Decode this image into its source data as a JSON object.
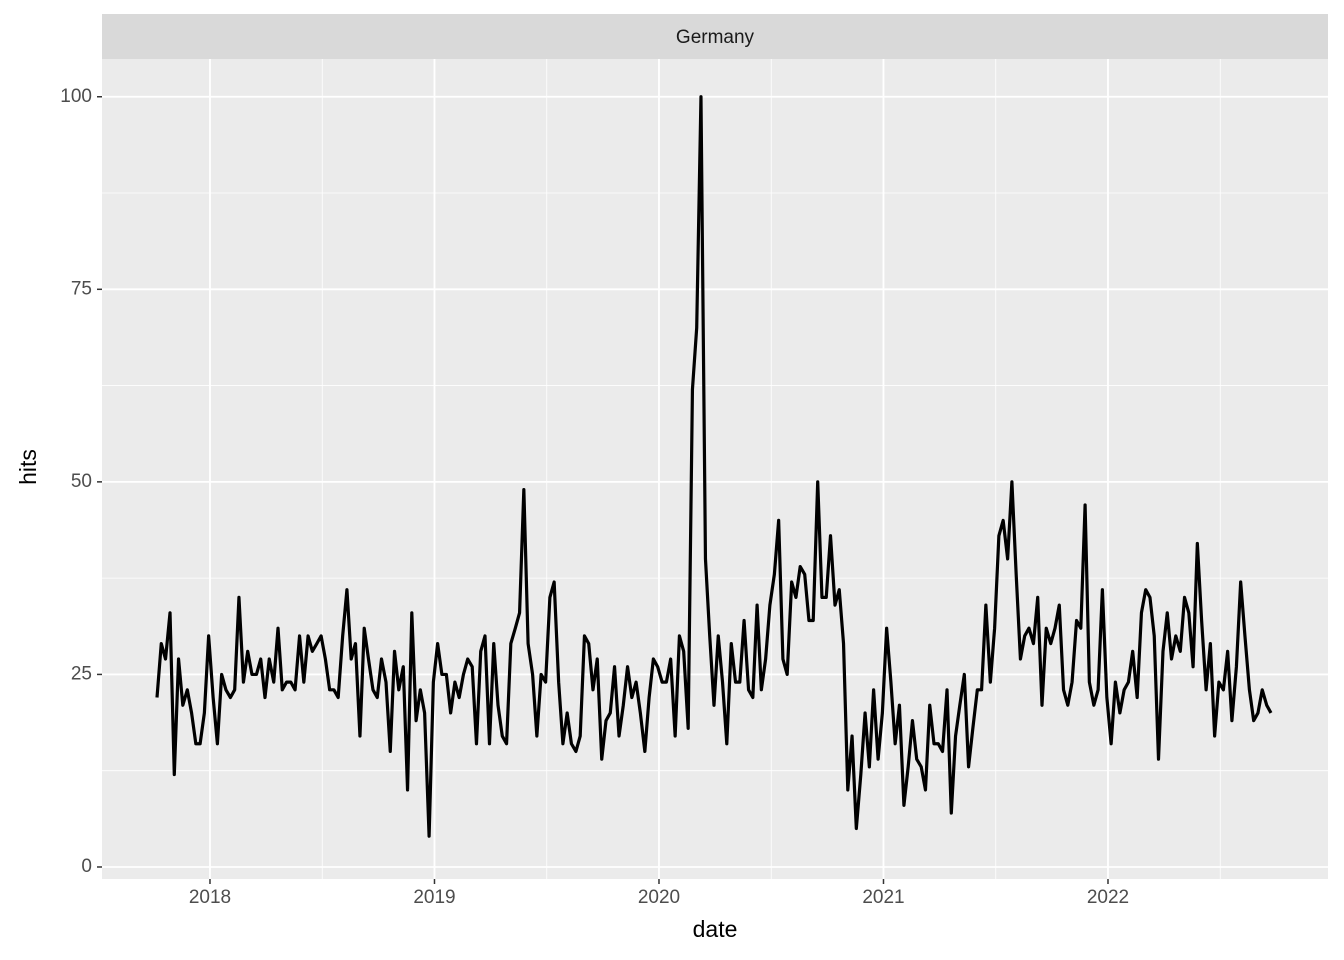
{
  "chart_data": {
    "type": "line",
    "strip_label": "Germany",
    "x_label": "date",
    "y_label": "hits",
    "xlim": [
      2017.519,
      2022.98
    ],
    "ylim": [
      -1.56,
      104.9
    ],
    "xticks": [
      2018,
      2019,
      2020,
      2021,
      2022
    ],
    "yticks": [
      0,
      25,
      50,
      75,
      100
    ],
    "grid": true,
    "minor_grid": true,
    "x": [
      2017.764,
      2017.783,
      2017.802,
      2017.822,
      2017.841,
      2017.86,
      2017.879,
      2017.899,
      2017.918,
      2017.937,
      2017.956,
      2017.975,
      2017.994,
      2018.014,
      2018.033,
      2018.052,
      2018.071,
      2018.091,
      2018.11,
      2018.129,
      2018.149,
      2018.168,
      2018.187,
      2018.207,
      2018.226,
      2018.245,
      2018.264,
      2018.284,
      2018.303,
      2018.322,
      2018.341,
      2018.36,
      2018.379,
      2018.399,
      2018.418,
      2018.437,
      2018.456,
      2018.476,
      2018.495,
      2018.514,
      2018.533,
      2018.552,
      2018.571,
      2018.591,
      2018.61,
      2018.629,
      2018.648,
      2018.668,
      2018.687,
      2018.706,
      2018.726,
      2018.745,
      2018.764,
      2018.784,
      2018.803,
      2018.822,
      2018.841,
      2018.861,
      2018.88,
      2018.899,
      2018.918,
      2018.937,
      2018.956,
      2018.976,
      2018.995,
      2019.014,
      2019.033,
      2019.053,
      2019.072,
      2019.091,
      2019.11,
      2019.129,
      2019.148,
      2019.168,
      2019.187,
      2019.206,
      2019.225,
      2019.245,
      2019.264,
      2019.283,
      2019.302,
      2019.321,
      2019.34,
      2019.36,
      2019.379,
      2019.398,
      2019.417,
      2019.437,
      2019.456,
      2019.475,
      2019.495,
      2019.514,
      2019.533,
      2019.553,
      2019.572,
      2019.591,
      2019.61,
      2019.63,
      2019.649,
      2019.668,
      2019.687,
      2019.706,
      2019.725,
      2019.745,
      2019.764,
      2019.783,
      2019.802,
      2019.822,
      2019.841,
      2019.86,
      2019.879,
      2019.898,
      2019.917,
      2019.937,
      2019.956,
      2019.975,
      2019.994,
      2020.014,
      2020.033,
      2020.052,
      2020.072,
      2020.091,
      2020.11,
      2020.13,
      2020.149,
      2020.168,
      2020.187,
      2020.207,
      2020.226,
      2020.245,
      2020.264,
      2020.283,
      2020.302,
      2020.322,
      2020.341,
      2020.36,
      2020.379,
      2020.399,
      2020.418,
      2020.437,
      2020.456,
      2020.475,
      2020.494,
      2020.514,
      2020.533,
      2020.552,
      2020.571,
      2020.591,
      2020.61,
      2020.629,
      2020.649,
      2020.668,
      2020.687,
      2020.707,
      2020.726,
      2020.745,
      2020.764,
      2020.784,
      2020.803,
      2020.822,
      2020.841,
      2020.86,
      2020.879,
      2020.899,
      2020.918,
      2020.937,
      2020.956,
      2020.976,
      2020.995,
      2021.014,
      2021.033,
      2021.052,
      2021.071,
      2021.091,
      2021.11,
      2021.129,
      2021.148,
      2021.168,
      2021.187,
      2021.206,
      2021.225,
      2021.244,
      2021.263,
      2021.283,
      2021.302,
      2021.321,
      2021.34,
      2021.36,
      2021.379,
      2021.398,
      2021.418,
      2021.437,
      2021.456,
      2021.476,
      2021.495,
      2021.514,
      2021.533,
      2021.553,
      2021.572,
      2021.591,
      2021.61,
      2021.629,
      2021.648,
      2021.668,
      2021.687,
      2021.706,
      2021.725,
      2021.745,
      2021.764,
      2021.783,
      2021.802,
      2021.821,
      2021.84,
      2021.86,
      2021.879,
      2021.898,
      2021.917,
      2021.937,
      2021.956,
      2021.975,
      2021.995,
      2022.014,
      2022.033,
      2022.053,
      2022.072,
      2022.091,
      2022.11,
      2022.13,
      2022.149,
      2022.168,
      2022.187,
      2022.206,
      2022.225,
      2022.245,
      2022.264,
      2022.283,
      2022.302,
      2022.322,
      2022.341,
      2022.36,
      2022.379,
      2022.398,
      2022.417,
      2022.437,
      2022.456,
      2022.475,
      2022.494,
      2022.514,
      2022.533,
      2022.552,
      2022.572,
      2022.591,
      2022.61,
      2022.63,
      2022.649,
      2022.668,
      2022.687,
      2022.707,
      2022.726
    ],
    "series": [
      {
        "color": "#000000",
        "values": [
          22,
          29,
          27,
          33,
          12,
          27,
          21,
          23,
          20,
          16,
          16,
          20,
          30,
          22,
          16,
          25,
          23,
          22,
          23,
          35,
          24,
          28,
          25,
          25,
          27,
          22,
          27,
          24,
          31,
          23,
          24,
          24,
          23,
          30,
          24,
          30,
          28,
          29,
          30,
          27,
          23,
          23,
          22,
          30,
          36,
          27,
          29,
          17,
          31,
          27,
          23,
          22,
          27,
          24,
          15,
          28,
          23,
          26,
          10,
          33,
          19,
          23,
          20,
          4,
          24,
          29,
          25,
          25,
          20,
          24,
          22,
          25,
          27,
          26,
          16,
          28,
          30,
          16,
          29,
          21,
          17,
          16,
          29,
          31,
          33,
          49,
          29,
          25,
          17,
          25,
          24,
          35,
          37,
          24,
          16,
          20,
          16,
          15,
          17,
          30,
          29,
          23,
          27,
          14,
          19,
          20,
          26,
          17,
          21,
          26,
          22,
          24,
          20,
          15,
          22,
          27,
          26,
          24,
          24,
          27,
          17,
          30,
          28,
          18,
          62,
          70,
          100,
          40,
          30,
          21,
          30,
          24,
          16,
          29,
          24,
          24,
          32,
          23,
          22,
          34,
          23,
          27,
          34,
          38,
          45,
          27,
          25,
          37,
          35,
          39,
          38,
          32,
          32,
          50,
          35,
          35,
          43,
          34,
          36,
          29,
          10,
          17,
          5,
          12,
          20,
          13,
          23,
          14,
          20,
          31,
          24,
          16,
          21,
          8,
          13,
          19,
          14,
          13,
          10,
          21,
          16,
          16,
          15,
          23,
          7,
          17,
          21,
          25,
          13,
          18,
          23,
          23,
          34,
          24,
          31,
          43,
          45,
          40,
          50,
          38,
          27,
          30,
          31,
          29,
          35,
          21,
          31,
          29,
          31,
          34,
          23,
          21,
          24,
          32,
          31,
          47,
          24,
          21,
          23,
          36,
          22,
          16,
          24,
          20,
          23,
          24,
          28,
          22,
          33,
          36,
          35,
          30,
          14,
          28,
          33,
          27,
          30,
          28,
          35,
          33,
          26,
          42,
          32,
          23,
          29,
          17,
          24,
          23,
          28,
          19,
          26,
          37,
          30,
          23,
          19,
          20,
          23,
          21,
          20
        ]
      }
    ]
  }
}
